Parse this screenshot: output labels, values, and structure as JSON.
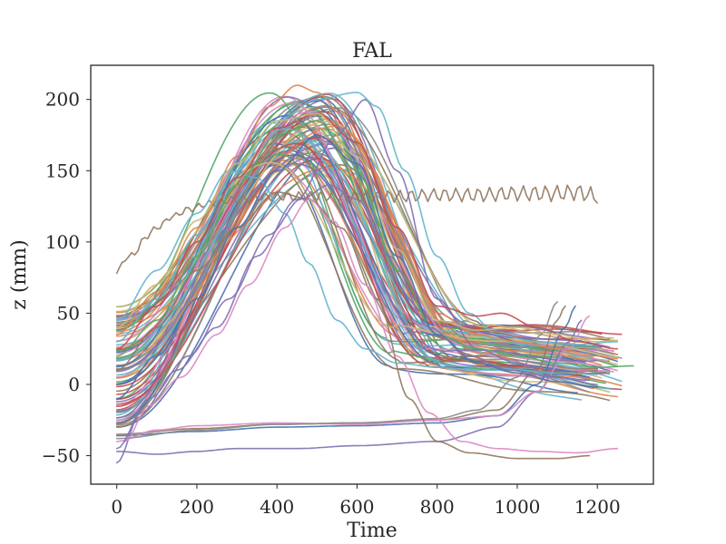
{
  "chart_data": {
    "type": "line",
    "title": "FAL",
    "xlabel": "Time",
    "ylabel": "z (mm)",
    "xlim": [
      -65,
      1340
    ],
    "ylim": [
      -70,
      224
    ],
    "xticks": [
      0,
      200,
      400,
      600,
      800,
      1000,
      1200
    ],
    "yticks": [
      -50,
      0,
      50,
      100,
      150,
      200
    ],
    "grid": false,
    "legend": "none",
    "palette": [
      "#4c72b0",
      "#dd8452",
      "#55a868",
      "#c44e52",
      "#8172b3",
      "#937860",
      "#da8bc3",
      "#8c8c8c",
      "#ccb974",
      "#64b5cd"
    ],
    "band_series_count": 80,
    "series": [
      {
        "color": "#937860",
        "points": [
          [
            0,
            78
          ],
          [
            20,
            88
          ],
          [
            45,
            92
          ],
          [
            70,
            103
          ],
          [
            100,
            110
          ],
          [
            140,
            118
          ],
          [
            180,
            123
          ],
          [
            230,
            127
          ],
          [
            300,
            130
          ],
          [
            400,
            132
          ],
          [
            500,
            132
          ],
          [
            600,
            132
          ],
          [
            700,
            132
          ],
          [
            800,
            133
          ],
          [
            900,
            133
          ],
          [
            1000,
            134
          ],
          [
            1100,
            134
          ],
          [
            1150,
            135
          ],
          [
            1200,
            132
          ]
        ],
        "wiggle_amp": 6,
        "wiggle_period": 28
      },
      {
        "color": "#937860",
        "points": [
          [
            0,
            -35
          ],
          [
            200,
            -31
          ],
          [
            400,
            -28
          ],
          [
            600,
            -27
          ],
          [
            800,
            -25
          ],
          [
            950,
            -18
          ],
          [
            1050,
            10
          ],
          [
            1100,
            45
          ],
          [
            1120,
            55
          ]
        ]
      },
      {
        "color": "#4c72b0",
        "points": [
          [
            0,
            -36
          ],
          [
            200,
            -33
          ],
          [
            400,
            -30
          ],
          [
            600,
            -29
          ],
          [
            800,
            -27
          ],
          [
            950,
            -22
          ],
          [
            1050,
            0
          ],
          [
            1120,
            40
          ],
          [
            1145,
            55
          ]
        ]
      },
      {
        "color": "#8172b3",
        "points": [
          [
            0,
            -47
          ],
          [
            100,
            -49
          ],
          [
            200,
            -47
          ],
          [
            300,
            -45
          ],
          [
            450,
            -45
          ],
          [
            600,
            -43
          ],
          [
            800,
            -40
          ],
          [
            950,
            -30
          ],
          [
            1050,
            -5
          ],
          [
            1130,
            30
          ],
          [
            1160,
            45
          ]
        ]
      },
      {
        "color": "#da8bc3",
        "points": [
          [
            0,
            -40
          ],
          [
            100,
            -32
          ],
          [
            200,
            -29
          ],
          [
            400,
            -27
          ],
          [
            600,
            -28
          ],
          [
            800,
            -25
          ],
          [
            950,
            -22
          ],
          [
            1050,
            -5
          ],
          [
            1130,
            25
          ],
          [
            1180,
            48
          ]
        ]
      },
      {
        "color": "#8c8c8c",
        "points": [
          [
            0,
            -38
          ],
          [
            200,
            -32
          ],
          [
            400,
            -28
          ],
          [
            600,
            -27
          ],
          [
            800,
            -24
          ],
          [
            900,
            -18
          ],
          [
            1000,
            5
          ],
          [
            1060,
            35
          ],
          [
            1100,
            58
          ]
        ]
      },
      {
        "color": "#8172b3",
        "points": [
          [
            0,
            -55
          ],
          [
            60,
            -20
          ],
          [
            150,
            10
          ],
          [
            250,
            40
          ],
          [
            350,
            90
          ],
          [
            450,
            130
          ],
          [
            550,
            175
          ],
          [
            620,
            200
          ],
          [
            700,
            150
          ],
          [
            800,
            60
          ],
          [
            900,
            25
          ],
          [
            1000,
            15
          ],
          [
            1100,
            5
          ],
          [
            1200,
            0
          ]
        ]
      },
      {
        "color": "#937860",
        "points": [
          [
            0,
            10
          ],
          [
            100,
            40
          ],
          [
            200,
            80
          ],
          [
            300,
            110
          ],
          [
            400,
            135
          ],
          [
            480,
            130
          ],
          [
            560,
            110
          ],
          [
            650,
            60
          ],
          [
            730,
            -10
          ],
          [
            800,
            -40
          ],
          [
            880,
            -48
          ],
          [
            1000,
            -52
          ],
          [
            1100,
            -52
          ],
          [
            1180,
            -50
          ]
        ]
      },
      {
        "color": "#da8bc3",
        "points": [
          [
            20,
            -40
          ],
          [
            80,
            -15
          ],
          [
            160,
            5
          ],
          [
            250,
            35
          ],
          [
            330,
            70
          ],
          [
            420,
            110
          ],
          [
            480,
            130
          ],
          [
            540,
            115
          ],
          [
            620,
            70
          ],
          [
            700,
            20
          ],
          [
            780,
            -20
          ],
          [
            860,
            -40
          ],
          [
            950,
            -45
          ],
          [
            1050,
            -47
          ],
          [
            1150,
            -48
          ],
          [
            1250,
            -45
          ]
        ]
      },
      {
        "color": "#dd8452",
        "points": [
          [
            0,
            35
          ],
          [
            100,
            65
          ],
          [
            200,
            110
          ],
          [
            300,
            160
          ],
          [
            380,
            195
          ],
          [
            450,
            210
          ],
          [
            500,
            205
          ],
          [
            560,
            190
          ],
          [
            640,
            150
          ],
          [
            720,
            95
          ],
          [
            800,
            50
          ],
          [
            900,
            35
          ],
          [
            1000,
            30
          ],
          [
            1100,
            25
          ],
          [
            1200,
            20
          ],
          [
            1250,
            18
          ]
        ]
      },
      {
        "color": "#64b5cd",
        "points": [
          [
            0,
            45
          ],
          [
            100,
            80
          ],
          [
            200,
            120
          ],
          [
            280,
            150
          ],
          [
            350,
            145
          ],
          [
            420,
            120
          ],
          [
            480,
            85
          ],
          [
            550,
            45
          ],
          [
            620,
            25
          ],
          [
            700,
            15
          ],
          [
            800,
            12
          ],
          [
            900,
            10
          ],
          [
            1000,
            10
          ],
          [
            1100,
            8
          ],
          [
            1200,
            7
          ]
        ]
      },
      {
        "color": "#64b5cd",
        "points": [
          [
            0,
            30
          ],
          [
            100,
            60
          ],
          [
            200,
            105
          ],
          [
            300,
            150
          ],
          [
            400,
            185
          ],
          [
            500,
            200
          ],
          [
            600,
            205
          ],
          [
            650,
            195
          ],
          [
            720,
            150
          ],
          [
            800,
            90
          ],
          [
            880,
            50
          ],
          [
            950,
            35
          ],
          [
            1050,
            30
          ],
          [
            1150,
            28
          ],
          [
            1250,
            30
          ]
        ]
      },
      {
        "color": "#55a868",
        "points": [
          [
            0,
            20
          ],
          [
            100,
            45
          ],
          [
            200,
            90
          ],
          [
            300,
            140
          ],
          [
            400,
            175
          ],
          [
            500,
            185
          ],
          [
            600,
            150
          ],
          [
            700,
            80
          ],
          [
            800,
            35
          ],
          [
            900,
            25
          ],
          [
            1000,
            20
          ],
          [
            1100,
            15
          ],
          [
            1200,
            12
          ],
          [
            1290,
            13
          ]
        ]
      },
      {
        "color": "#c44e52",
        "points": [
          [
            0,
            25
          ],
          [
            100,
            55
          ],
          [
            200,
            100
          ],
          [
            300,
            145
          ],
          [
            400,
            180
          ],
          [
            500,
            190
          ],
          [
            600,
            170
          ],
          [
            700,
            110
          ],
          [
            800,
            55
          ],
          [
            900,
            48
          ],
          [
            960,
            50
          ],
          [
            1050,
            40
          ],
          [
            1150,
            30
          ],
          [
            1250,
            25
          ]
        ]
      },
      {
        "color": "#ccb974",
        "points": [
          [
            0,
            40
          ],
          [
            100,
            70
          ],
          [
            200,
            115
          ],
          [
            300,
            155
          ],
          [
            400,
            185
          ],
          [
            500,
            190
          ],
          [
            600,
            160
          ],
          [
            700,
            95
          ],
          [
            800,
            45
          ],
          [
            900,
            38
          ],
          [
            1000,
            40
          ],
          [
            1100,
            35
          ],
          [
            1200,
            30
          ],
          [
            1250,
            31
          ]
        ]
      },
      {
        "color": "#4c72b0",
        "points": [
          [
            0,
            -10
          ],
          [
            100,
            20
          ],
          [
            200,
            60
          ],
          [
            300,
            110
          ],
          [
            400,
            150
          ],
          [
            500,
            175
          ],
          [
            600,
            155
          ],
          [
            700,
            90
          ],
          [
            800,
            35
          ],
          [
            900,
            15
          ],
          [
            1000,
            8
          ],
          [
            1100,
            2
          ],
          [
            1200,
            -2
          ]
        ]
      },
      {
        "color": "#8172b3",
        "points": [
          [
            0,
            -45
          ],
          [
            80,
            -10
          ],
          [
            180,
            20
          ],
          [
            280,
            60
          ],
          [
            380,
            105
          ],
          [
            460,
            130
          ],
          [
            530,
            140
          ],
          [
            600,
            130
          ],
          [
            680,
            90
          ],
          [
            780,
            40
          ],
          [
            880,
            20
          ],
          [
            980,
            10
          ],
          [
            1100,
            5
          ],
          [
            1180,
            3
          ]
        ]
      }
    ]
  }
}
